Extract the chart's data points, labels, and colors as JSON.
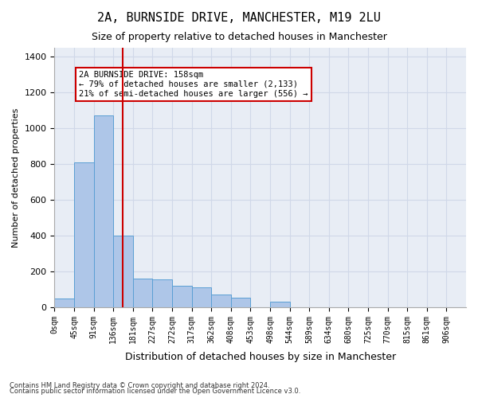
{
  "title_line1": "2A, BURNSIDE DRIVE, MANCHESTER, M19 2LU",
  "title_line2": "Size of property relative to detached houses in Manchester",
  "xlabel": "Distribution of detached houses by size in Manchester",
  "ylabel": "Number of detached properties",
  "bin_labels": [
    "0sqm",
    "45sqm",
    "91sqm",
    "136sqm",
    "181sqm",
    "227sqm",
    "272sqm",
    "317sqm",
    "362sqm",
    "408sqm",
    "453sqm",
    "498sqm",
    "544sqm",
    "589sqm",
    "634sqm",
    "680sqm",
    "725sqm",
    "770sqm",
    "815sqm",
    "861sqm",
    "906sqm"
  ],
  "bar_values": [
    50,
    810,
    1070,
    400,
    160,
    155,
    120,
    110,
    70,
    55,
    0,
    30,
    0,
    0,
    0,
    0,
    0,
    0,
    0,
    0
  ],
  "bar_color": "#aec6e8",
  "bar_edge_color": "#5a9fd4",
  "grid_color": "#d0d8e8",
  "background_color": "#e8edf5",
  "vline_color": "#cc0000",
  "annotation_text_line1": "2A BURNSIDE DRIVE: 158sqm",
  "annotation_text_line2": "← 79% of detached houses are smaller (2,133)",
  "annotation_text_line3": "21% of semi-detached houses are larger (556) →",
  "annotation_box_color": "#cc0000",
  "ylim": [
    0,
    1450
  ],
  "yticks": [
    0,
    200,
    400,
    600,
    800,
    1000,
    1200,
    1400
  ],
  "footer_line1": "Contains HM Land Registry data © Crown copyright and database right 2024.",
  "footer_line2": "Contains public sector information licensed under the Open Government Licence v3.0."
}
